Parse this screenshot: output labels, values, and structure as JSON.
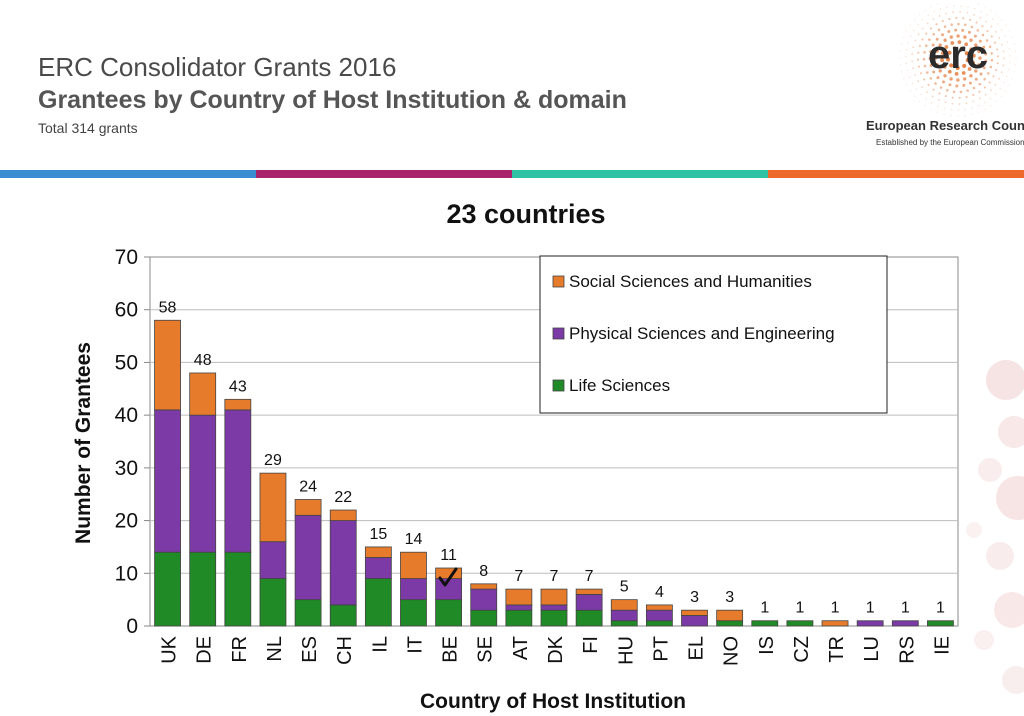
{
  "header": {
    "title": "ERC Consolidator Grants 2016",
    "subtitle": "Grantees by Country of Host Institution & domain",
    "total": "Total 314 grants"
  },
  "logo": {
    "mark": "erc",
    "name": "European Research Council",
    "tagline": "Established by the European Commission"
  },
  "colors": {
    "band": [
      "#3a8dd0",
      "#a8236a",
      "#2fc2a4",
      "#ee6a2c"
    ],
    "ssh": "#e77b2c",
    "pe": "#7b3aa6",
    "ls": "#1f8a26"
  },
  "chart_data": {
    "type": "bar",
    "stacked": true,
    "title": "23 countries",
    "xlabel": "Country of Host Institution",
    "ylabel": "Number of Grantees",
    "ylim": [
      0,
      70
    ],
    "yticks": [
      0,
      10,
      20,
      30,
      40,
      50,
      60,
      70
    ],
    "grid": true,
    "legend_position": "top-right",
    "categories": [
      "UK",
      "DE",
      "FR",
      "NL",
      "ES",
      "CH",
      "IL",
      "IT",
      "BE",
      "SE",
      "AT",
      "DK",
      "FI",
      "HU",
      "PT",
      "EL",
      "NO",
      "IS",
      "CZ",
      "TR",
      "LU",
      "RS",
      "IE"
    ],
    "series": [
      {
        "name": "Life Sciences",
        "color": "#1f8a26",
        "values": [
          14,
          14,
          14,
          9,
          5,
          4,
          9,
          5,
          5,
          3,
          3,
          3,
          3,
          1,
          1,
          0,
          1,
          1,
          1,
          0,
          0,
          0,
          1
        ]
      },
      {
        "name": "Physical Sciences and Engineering",
        "color": "#7b3aa6",
        "values": [
          27,
          26,
          27,
          7,
          16,
          16,
          4,
          4,
          4,
          4,
          1,
          1,
          3,
          2,
          2,
          2,
          0,
          0,
          0,
          0,
          1,
          1,
          0
        ]
      },
      {
        "name": "Social Sciences and Humanities",
        "color": "#e77b2c",
        "values": [
          17,
          8,
          2,
          13,
          3,
          2,
          2,
          5,
          2,
          1,
          3,
          3,
          1,
          2,
          1,
          1,
          2,
          0,
          0,
          1,
          0,
          0,
          0
        ]
      }
    ],
    "legend_order": [
      "Social Sciences and Humanities",
      "Physical Sciences and Engineering",
      "Life Sciences"
    ],
    "totals": [
      58,
      48,
      43,
      29,
      24,
      22,
      15,
      14,
      11,
      8,
      7,
      7,
      7,
      5,
      4,
      3,
      3,
      1,
      1,
      1,
      1,
      1,
      1
    ]
  }
}
